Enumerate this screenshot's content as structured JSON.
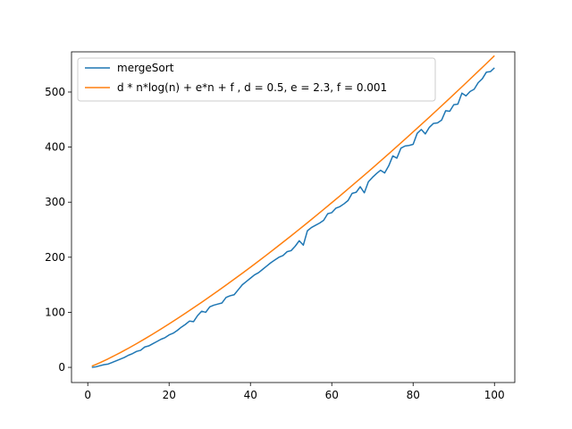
{
  "chart_data": {
    "type": "line",
    "title": "",
    "xlabel": "",
    "ylabel": "",
    "xlim": [
      -4,
      105
    ],
    "ylim": [
      -27.5,
      573
    ],
    "xticks": [
      0,
      20,
      40,
      60,
      80,
      100
    ],
    "yticks": [
      0,
      100,
      200,
      300,
      400,
      500
    ],
    "grid": false,
    "legend_position": "upper-left",
    "series": [
      {
        "name": "mergeSort",
        "color": "#1f77b4",
        "x": [
          1,
          2,
          3,
          4,
          5,
          6,
          7,
          8,
          9,
          10,
          11,
          12,
          13,
          14,
          15,
          16,
          17,
          18,
          19,
          20,
          21,
          22,
          23,
          24,
          25,
          26,
          27,
          28,
          29,
          30,
          31,
          32,
          33,
          34,
          35,
          36,
          37,
          38,
          39,
          40,
          41,
          42,
          43,
          44,
          45,
          46,
          47,
          48,
          49,
          50,
          51,
          52,
          53,
          54,
          55,
          56,
          57,
          58,
          59,
          60,
          61,
          62,
          63,
          64,
          65,
          66,
          67,
          68,
          69,
          70,
          71,
          72,
          73,
          74,
          75,
          76,
          77,
          78,
          79,
          80,
          81,
          82,
          83,
          84,
          85,
          86,
          87,
          88,
          89,
          90,
          91,
          92,
          93,
          94,
          95,
          96,
          97,
          98,
          99,
          100
        ],
        "y": [
          0,
          1,
          3,
          5,
          6,
          9,
          12,
          15,
          18,
          22,
          25,
          29,
          31,
          37,
          39,
          43,
          47,
          51,
          54,
          59,
          62,
          67,
          73,
          78,
          84,
          83,
          94,
          102,
          100,
          110,
          113,
          115,
          117,
          127,
          130,
          132,
          141,
          150,
          156,
          162,
          168,
          172,
          178,
          184,
          190,
          195,
          200,
          203,
          210,
          212,
          220,
          230,
          222,
          248,
          254,
          258,
          262,
          267,
          279,
          281,
          289,
          292,
          297,
          303,
          316,
          318,
          328,
          317,
          337,
          345,
          352,
          358,
          353,
          366,
          384,
          380,
          398,
          402,
          403,
          405,
          425,
          432,
          424,
          436,
          443,
          444,
          449,
          466,
          465,
          477,
          478,
          498,
          493,
          501,
          505,
          517,
          524,
          536,
          537,
          544
        ]
      },
      {
        "name": "d * n*log(n) + e*n + f , d = 0.5, e = 2.3, f = 0.001",
        "color": "#ff7f0e",
        "x": [
          1,
          2,
          3,
          4,
          5,
          6,
          7,
          8,
          9,
          10,
          12,
          14,
          16,
          18,
          20,
          22,
          24,
          26,
          28,
          30,
          32,
          34,
          36,
          38,
          40,
          42,
          44,
          46,
          48,
          50,
          52,
          54,
          56,
          58,
          60,
          62,
          64,
          66,
          68,
          70,
          72,
          74,
          76,
          78,
          80,
          82,
          84,
          86,
          88,
          90,
          92,
          94,
          96,
          98,
          100
        ],
        "y": [
          2.3,
          5.3,
          8.5,
          12.0,
          15.5,
          19.2,
          23.0,
          26.8,
          30.8,
          34.8,
          43.1,
          51.7,
          60.6,
          69.7,
          79.0,
          88.5,
          98.3,
          108.2,
          118.2,
          128.5,
          138.9,
          149.4,
          160.1,
          170.9,
          181.9,
          193.0,
          204.3,
          215.7,
          227.3,
          238.9,
          250.7,
          262.6,
          274.7,
          286.8,
          299.1,
          311.4,
          323.9,
          336.5,
          349.2,
          362.0,
          374.9,
          387.9,
          401.1,
          414.3,
          427.6,
          441.0,
          454.5,
          468.1,
          481.8,
          495.6,
          509.5,
          523.5,
          537.6,
          551.7,
          566.0
        ]
      }
    ]
  }
}
